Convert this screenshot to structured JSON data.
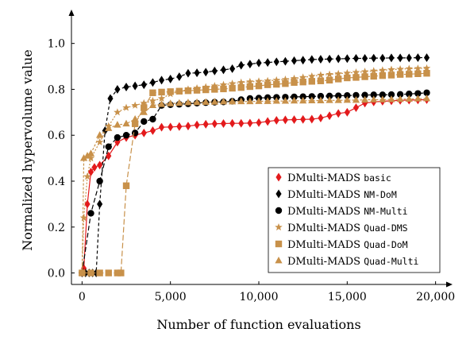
{
  "chart_data": {
    "type": "line",
    "title": "",
    "xlabel": "Number of function evaluations",
    "ylabel": "Normalized hypervolume value",
    "xlim": [
      -600,
      20600
    ],
    "ylim": [
      -0.05,
      1.12
    ],
    "xticks": [
      0,
      5000,
      10000,
      15000,
      20000
    ],
    "xtick_labels": [
      "0",
      "5,000",
      "10,000",
      "15,000",
      "20,000"
    ],
    "yticks": [
      0.0,
      0.2,
      0.4,
      0.6,
      0.8,
      1.0
    ],
    "ytick_labels": [
      "0.0",
      "0.2",
      "0.4",
      "0.6",
      "0.8",
      "1.0"
    ],
    "grid": false,
    "legend_position": "bottom-right",
    "series": [
      {
        "name": "DMulti-MADS",
        "tag": "basic",
        "color": "#e31a1c",
        "marker": "diamond",
        "dash": "none",
        "x": [
          0,
          100,
          300,
          500,
          700,
          1000,
          1500,
          2000,
          2500,
          3000,
          3500,
          4000,
          4500,
          5000,
          5500,
          6000,
          6500,
          7000,
          7500,
          8000,
          8500,
          9000,
          9500,
          10000,
          10500,
          11000,
          11500,
          12000,
          12500,
          13000,
          13500,
          14000,
          14500,
          15000,
          15500,
          16000,
          16500,
          17000,
          17500,
          18000,
          18500,
          19000,
          19500
        ],
        "y": [
          0.0,
          0.02,
          0.3,
          0.44,
          0.46,
          0.47,
          0.51,
          0.57,
          0.59,
          0.6,
          0.61,
          0.62,
          0.635,
          0.636,
          0.638,
          0.64,
          0.645,
          0.648,
          0.65,
          0.651,
          0.652,
          0.652,
          0.653,
          0.655,
          0.66,
          0.665,
          0.667,
          0.668,
          0.669,
          0.67,
          0.675,
          0.685,
          0.695,
          0.7,
          0.72,
          0.74,
          0.745,
          0.748,
          0.75,
          0.752,
          0.753,
          0.754,
          0.755
        ]
      },
      {
        "name": "DMulti-MADS",
        "tag": "NM-DoM",
        "color": "#000000",
        "marker": "diamond",
        "dash": "4,3",
        "x": [
          0,
          200,
          400,
          600,
          800,
          1000,
          1300,
          1600,
          2000,
          2500,
          3000,
          3500,
          4000,
          4500,
          5000,
          5500,
          6000,
          6500,
          7000,
          7500,
          8000,
          8500,
          9000,
          9500,
          10000,
          10500,
          11000,
          11500,
          12000,
          12500,
          13000,
          13500,
          14000,
          14500,
          15000,
          15500,
          16000,
          16500,
          17000,
          17500,
          18000,
          18500,
          19000,
          19500
        ],
        "y": [
          0.0,
          0.0,
          0.0,
          0.0,
          0.0,
          0.3,
          0.62,
          0.76,
          0.8,
          0.81,
          0.815,
          0.82,
          0.83,
          0.84,
          0.845,
          0.855,
          0.87,
          0.872,
          0.875,
          0.88,
          0.885,
          0.89,
          0.905,
          0.91,
          0.915,
          0.917,
          0.92,
          0.922,
          0.925,
          0.927,
          0.93,
          0.931,
          0.932,
          0.933,
          0.934,
          0.935,
          0.935,
          0.936,
          0.936,
          0.937,
          0.937,
          0.937,
          0.938,
          0.938
        ]
      },
      {
        "name": "DMulti-MADS",
        "tag": "NM-Multi",
        "color": "#000000",
        "marker": "circle",
        "dash": "6,3",
        "x": [
          0,
          500,
          1000,
          1500,
          2000,
          2500,
          3000,
          3500,
          4000,
          4500,
          5000,
          5500,
          6000,
          6500,
          7000,
          7500,
          8000,
          8500,
          9000,
          9500,
          10000,
          10500,
          11000,
          11500,
          12000,
          12500,
          13000,
          13500,
          14000,
          14500,
          15000,
          15500,
          16000,
          16500,
          17000,
          17500,
          18000,
          18500,
          19000,
          19500
        ],
        "y": [
          0.0,
          0.26,
          0.4,
          0.55,
          0.59,
          0.6,
          0.61,
          0.66,
          0.67,
          0.73,
          0.733,
          0.735,
          0.737,
          0.74,
          0.742,
          0.744,
          0.745,
          0.748,
          0.755,
          0.76,
          0.762,
          0.764,
          0.765,
          0.766,
          0.767,
          0.768,
          0.769,
          0.77,
          0.771,
          0.772,
          0.773,
          0.774,
          0.775,
          0.776,
          0.776,
          0.777,
          0.778,
          0.78,
          0.782,
          0.785
        ]
      },
      {
        "name": "DMulti-MADS",
        "tag": "Quad-DMS",
        "color": "#c8914a",
        "marker": "star",
        "dash": "2,2",
        "x": [
          0,
          100,
          300,
          500,
          1000,
          1500,
          2000,
          2500,
          3000,
          3500,
          4000,
          4500,
          5000,
          5500,
          6000,
          6500,
          7000,
          7500,
          8000,
          8500,
          9000,
          9500,
          10000,
          10500,
          11000,
          11500,
          12000,
          12500,
          13000,
          13500,
          14000,
          14500,
          15000,
          15500,
          16000,
          16500,
          17000,
          17500,
          18000,
          18500,
          19000,
          19500
        ],
        "y": [
          0.0,
          0.24,
          0.42,
          0.5,
          0.57,
          0.64,
          0.7,
          0.72,
          0.73,
          0.74,
          0.75,
          0.76,
          0.78,
          0.79,
          0.8,
          0.805,
          0.81,
          0.815,
          0.82,
          0.825,
          0.83,
          0.833,
          0.835,
          0.837,
          0.84,
          0.843,
          0.847,
          0.852,
          0.857,
          0.862,
          0.865,
          0.868,
          0.871,
          0.874,
          0.877,
          0.88,
          0.883,
          0.886,
          0.888,
          0.89,
          0.891,
          0.892
        ]
      },
      {
        "name": "DMulti-MADS",
        "tag": "Quad-DoM",
        "color": "#c8914a",
        "marker": "square",
        "dash": "7,3",
        "x": [
          0,
          500,
          1000,
          1500,
          2000,
          2200,
          2500,
          3000,
          3500,
          4000,
          4500,
          5000,
          5500,
          6000,
          6500,
          7000,
          7500,
          8000,
          8500,
          9000,
          9500,
          10000,
          10500,
          11000,
          11500,
          12000,
          12500,
          13000,
          13500,
          14000,
          14500,
          15000,
          15500,
          16000,
          16500,
          17000,
          17500,
          18000,
          18500,
          19000,
          19500
        ],
        "y": [
          0.0,
          0.0,
          0.0,
          0.0,
          0.0,
          0.0,
          0.38,
          0.65,
          0.72,
          0.785,
          0.788,
          0.79,
          0.792,
          0.794,
          0.796,
          0.798,
          0.8,
          0.802,
          0.805,
          0.808,
          0.812,
          0.815,
          0.82,
          0.822,
          0.825,
          0.83,
          0.832,
          0.835,
          0.837,
          0.84,
          0.845,
          0.85,
          0.852,
          0.855,
          0.857,
          0.86,
          0.862,
          0.865,
          0.866,
          0.868,
          0.87
        ]
      },
      {
        "name": "DMulti-MADS",
        "tag": "Quad-Multi",
        "color": "#c8914a",
        "marker": "triangle",
        "dash": "3,2",
        "x": [
          0,
          100,
          300,
          500,
          1000,
          1500,
          2000,
          2500,
          3000,
          3500,
          4000,
          4500,
          5000,
          5500,
          6000,
          6500,
          7000,
          7500,
          8000,
          8500,
          9000,
          9500,
          10000,
          10500,
          11000,
          11500,
          12000,
          12500,
          13000,
          13500,
          14000,
          14500,
          15000,
          15500,
          16000,
          16500,
          17000,
          17500,
          18000,
          18500,
          19000,
          19500
        ],
        "y": [
          0.0,
          0.5,
          0.51,
          0.52,
          0.6,
          0.63,
          0.645,
          0.65,
          0.67,
          0.7,
          0.73,
          0.735,
          0.738,
          0.74,
          0.742,
          0.743,
          0.744,
          0.745,
          0.746,
          0.746,
          0.747,
          0.747,
          0.748,
          0.748,
          0.749,
          0.749,
          0.75,
          0.75,
          0.751,
          0.751,
          0.752,
          0.752,
          0.753,
          0.753,
          0.754,
          0.755,
          0.755,
          0.756,
          0.757,
          0.758,
          0.759,
          0.76
        ]
      }
    ]
  }
}
